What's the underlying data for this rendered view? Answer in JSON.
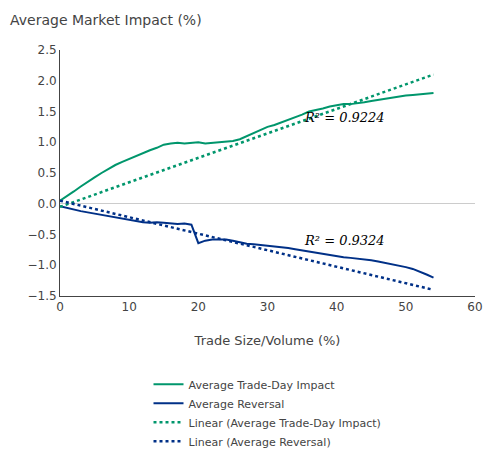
{
  "chart_data": {
    "type": "line",
    "title": "Average Market Impact (%)",
    "x_label": "Trade Size/Volume (%)",
    "xlim": [
      0,
      60
    ],
    "ylim": [
      -1.5,
      2.5
    ],
    "xticks": [
      0,
      10,
      20,
      30,
      40,
      50,
      60
    ],
    "yticks": [
      {
        "value": -1.5,
        "label": "−1.5"
      },
      {
        "value": -1.0,
        "label": "−1.0"
      },
      {
        "value": -0.5,
        "label": "−0.5"
      },
      {
        "value": 0.0,
        "label": "0.0"
      },
      0.5,
      {
        "value": 1.0,
        "label": "1.0"
      },
      1.5,
      {
        "value": 2.0,
        "label": "2.0"
      },
      2.5
    ],
    "grid": false,
    "legend": "bottom",
    "series": [
      {
        "name": "Average Trade-Day Impact",
        "color": "#00966C",
        "line_style": "solid",
        "x": [
          0,
          1,
          2,
          3,
          4,
          5,
          6,
          7,
          8,
          9,
          10,
          11,
          12,
          13,
          14,
          15,
          16,
          17,
          18,
          19,
          20,
          21,
          22,
          23,
          24,
          25,
          26,
          27,
          28,
          29,
          30,
          31,
          32,
          33,
          34,
          35,
          36,
          37,
          38,
          39,
          40,
          41,
          42,
          43,
          44,
          45,
          46,
          47,
          48,
          49,
          50,
          51,
          52,
          53,
          54
        ],
        "values": [
          0.05,
          0.12,
          0.2,
          0.28,
          0.36,
          0.43,
          0.5,
          0.57,
          0.63,
          0.68,
          0.73,
          0.78,
          0.83,
          0.87,
          0.91,
          0.96,
          0.98,
          0.99,
          0.98,
          0.99,
          1.0,
          0.98,
          0.99,
          1.0,
          1.01,
          1.02,
          1.05,
          1.1,
          1.15,
          1.2,
          1.25,
          1.28,
          1.32,
          1.36,
          1.4,
          1.45,
          1.5,
          1.52,
          1.55,
          1.58,
          1.6,
          1.62,
          1.62,
          1.63,
          1.65,
          1.67,
          1.69,
          1.71,
          1.73,
          1.75,
          1.76,
          1.77,
          1.78,
          1.79,
          1.8
        ]
      },
      {
        "name": "Average Reversal",
        "color": "#003087",
        "line_style": "solid",
        "x": [
          0,
          1,
          2,
          3,
          4,
          5,
          6,
          7,
          8,
          9,
          10,
          11,
          12,
          13,
          14,
          15,
          16,
          17,
          18,
          19,
          20,
          21,
          22,
          23,
          24,
          25,
          26,
          27,
          28,
          29,
          30,
          31,
          32,
          33,
          34,
          35,
          36,
          37,
          38,
          39,
          40,
          41,
          42,
          43,
          44,
          45,
          46,
          47,
          48,
          49,
          50,
          51,
          52,
          53,
          54
        ],
        "values": [
          -0.04,
          -0.07,
          -0.1,
          -0.12,
          -0.14,
          -0.16,
          -0.18,
          -0.2,
          -0.22,
          -0.25,
          -0.27,
          -0.29,
          -0.3,
          -0.31,
          -0.3,
          -0.31,
          -0.32,
          -0.33,
          -0.32,
          -0.34,
          -0.64,
          -0.6,
          -0.58,
          -0.58,
          -0.58,
          -0.6,
          -0.63,
          -0.65,
          -0.66,
          -0.67,
          -0.68,
          -0.69,
          -0.7,
          -0.72,
          -0.74,
          -0.76,
          -0.78,
          -0.8,
          -0.82,
          -0.84,
          -0.85,
          -0.87,
          -0.88,
          -0.89,
          -0.9,
          -0.92,
          -0.94,
          -0.96,
          -0.98,
          -1.0,
          -1.03,
          -1.06,
          -1.1,
          -1.15,
          -1.2
        ]
      },
      {
        "name": "Linear (Average Trade-Day Impact)",
        "color": "#00966C",
        "line_style": "dotted",
        "x": [
          0,
          54
        ],
        "values": [
          -0.05,
          2.1
        ]
      },
      {
        "name": "Linear (Average Reversal)",
        "color": "#003087",
        "line_style": "dotted",
        "x": [
          0,
          54
        ],
        "values": [
          0.05,
          -1.4
        ]
      }
    ],
    "annotations": [
      {
        "text": "R² = 0.9224",
        "x": 35,
        "y": 1.25
      },
      {
        "text": "R² = 0.9324",
        "x": 35,
        "y": -0.75
      }
    ]
  }
}
